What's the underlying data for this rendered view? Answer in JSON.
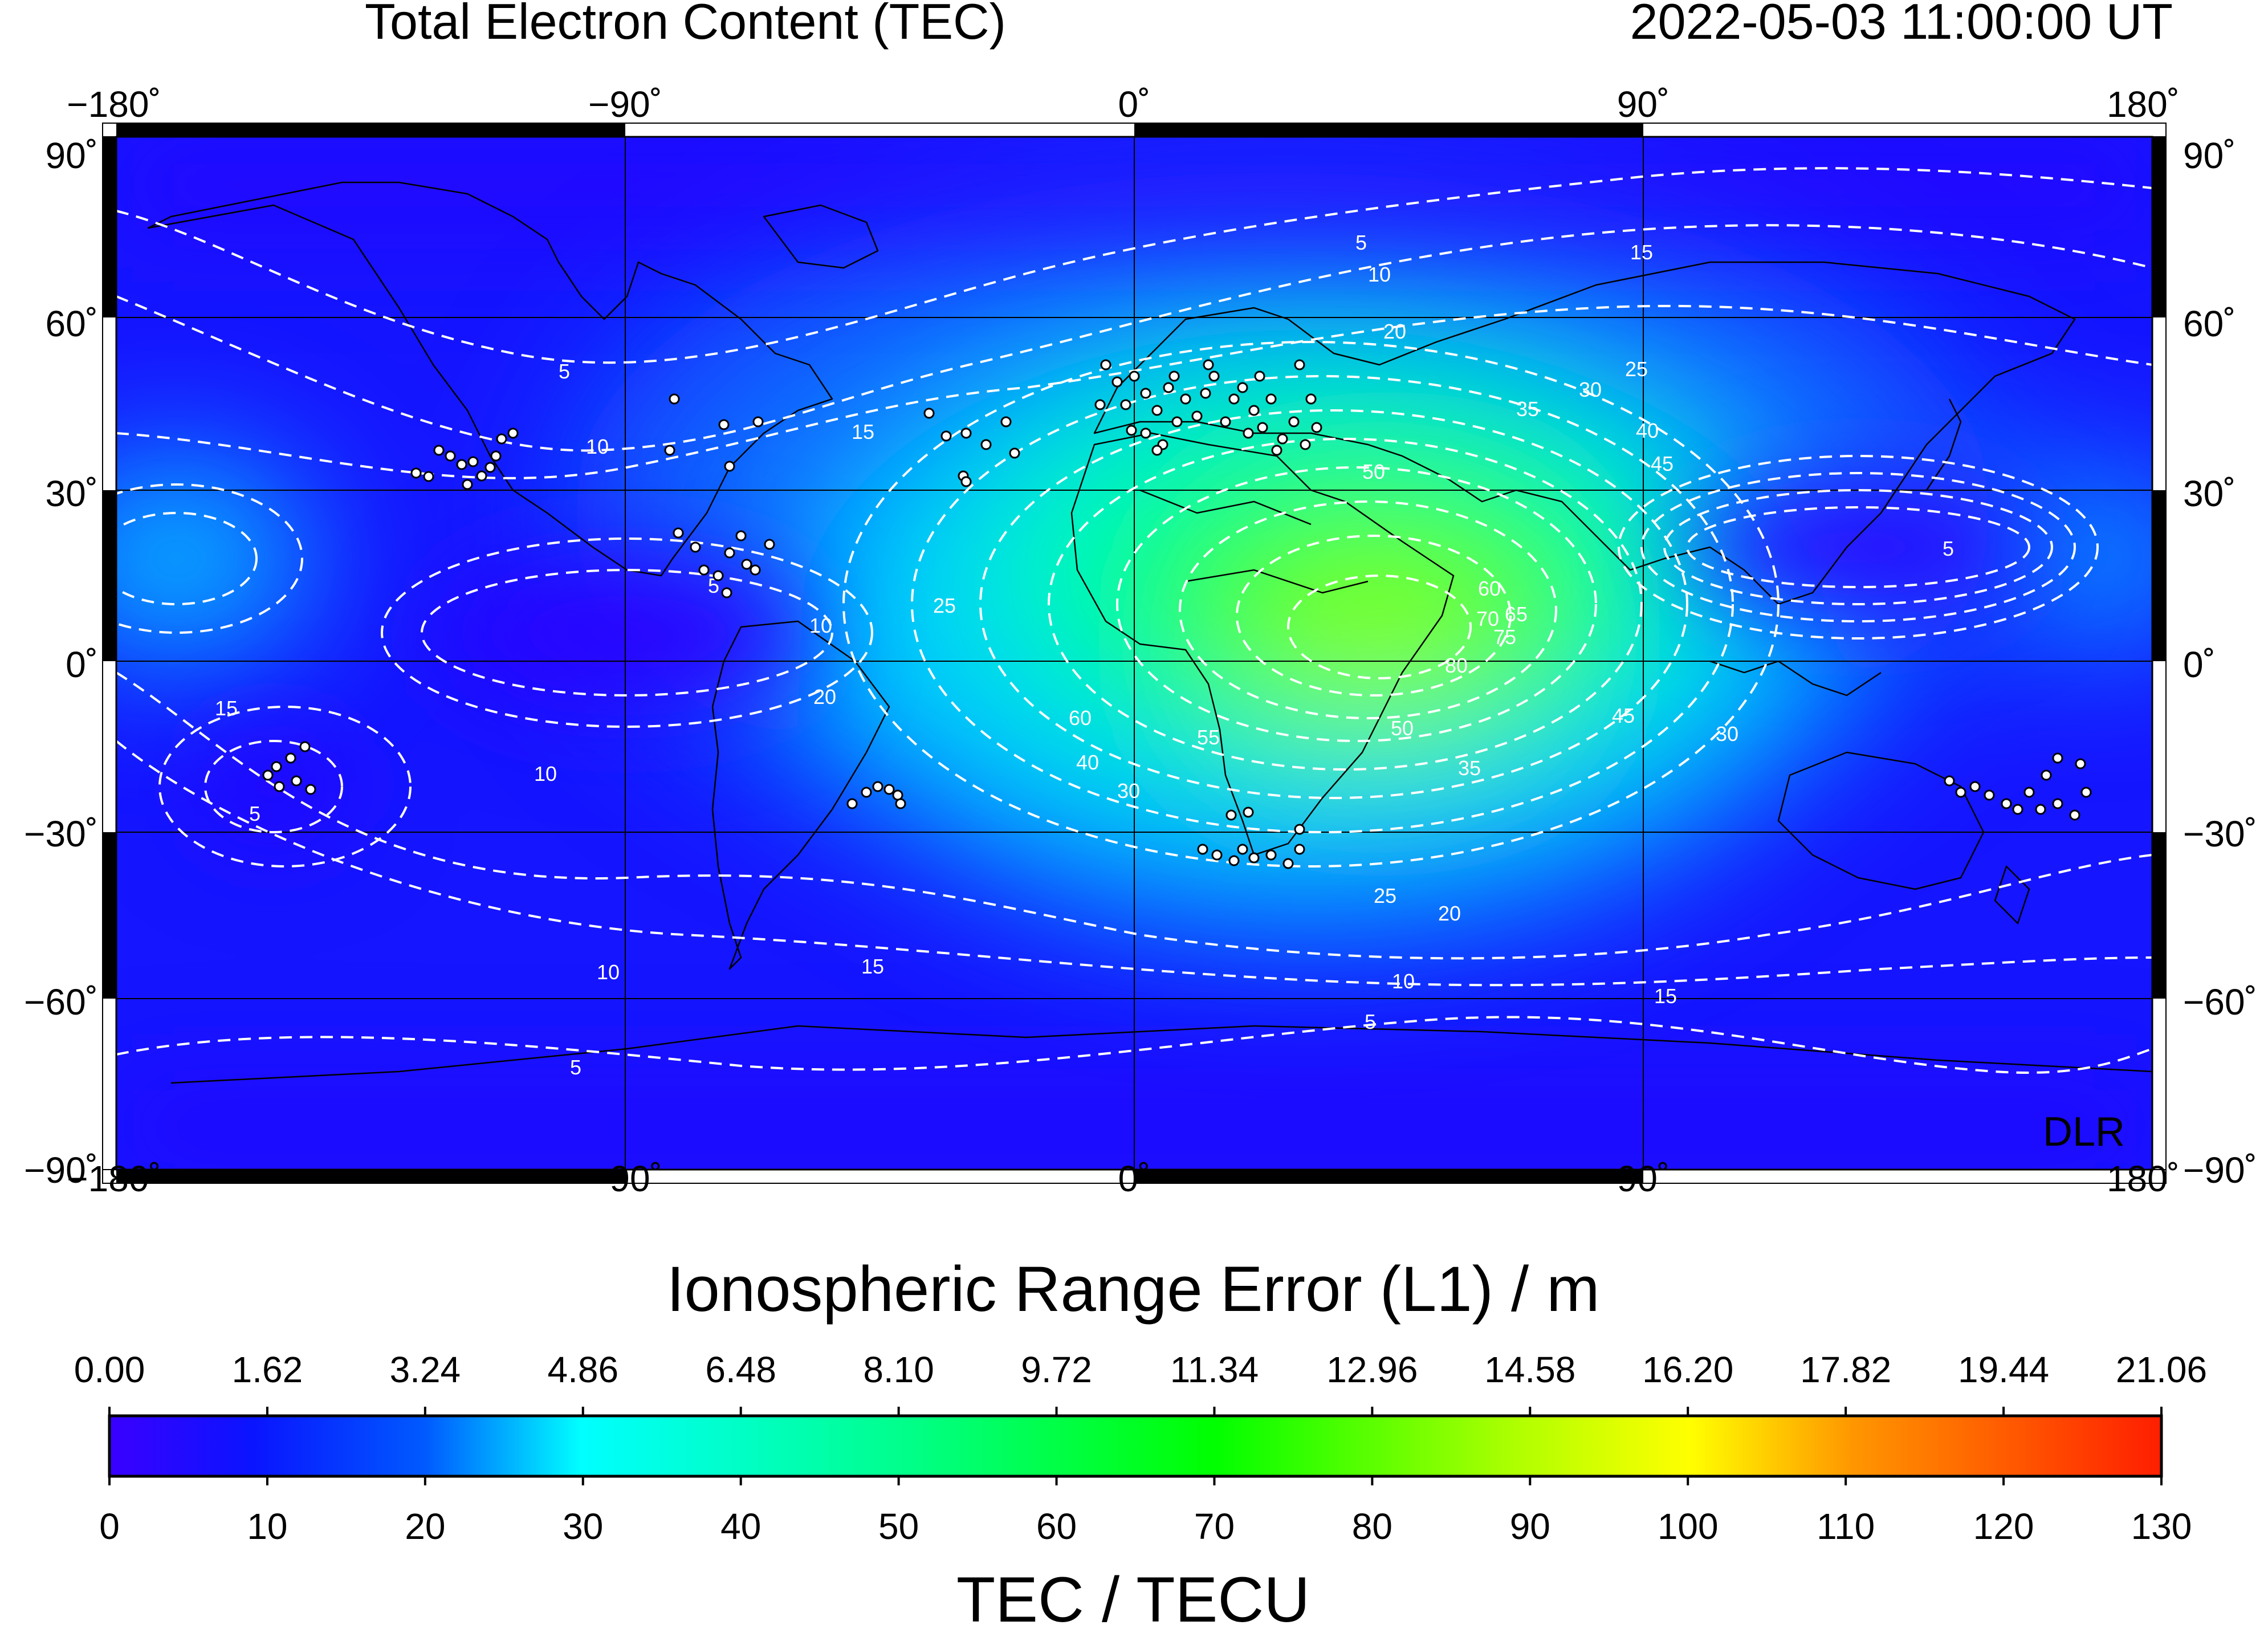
{
  "header": {
    "title": "Total Electron Content (TEC)",
    "timestamp": "2022-05-03  11:00:00 UT"
  },
  "map": {
    "lon_ticks": [
      "−180˚",
      "−90˚",
      "0˚",
      "90˚",
      "180˚"
    ],
    "lat_ticks": [
      "90˚",
      "60˚",
      "30˚",
      "0˚",
      "−30˚",
      "−60˚",
      "−90˚"
    ],
    "watermark": "DLR",
    "contour_levels": [
      5,
      10,
      15,
      20,
      25,
      30,
      35,
      40,
      45,
      50,
      55,
      60,
      65,
      70,
      75,
      80
    ]
  },
  "colorbar": {
    "range_error_title": "Ionospheric Range Error (L1) / m",
    "range_error_ticks": [
      "0.00",
      "1.62",
      "3.24",
      "4.86",
      "6.48",
      "8.10",
      "9.72",
      "11.34",
      "12.96",
      "14.58",
      "16.20",
      "17.82",
      "19.44",
      "21.06"
    ],
    "tec_title": "TEC / TECU",
    "tec_ticks": [
      "0",
      "10",
      "20",
      "30",
      "40",
      "50",
      "60",
      "70",
      "80",
      "90",
      "100",
      "110",
      "120",
      "130"
    ],
    "colors": [
      "#3a00ff",
      "#0a28ff",
      "#008cff",
      "#00ffff",
      "#00ff8c",
      "#00ff00",
      "#b4ff00",
      "#ffff00",
      "#ff8000",
      "#ff1e00"
    ]
  }
}
